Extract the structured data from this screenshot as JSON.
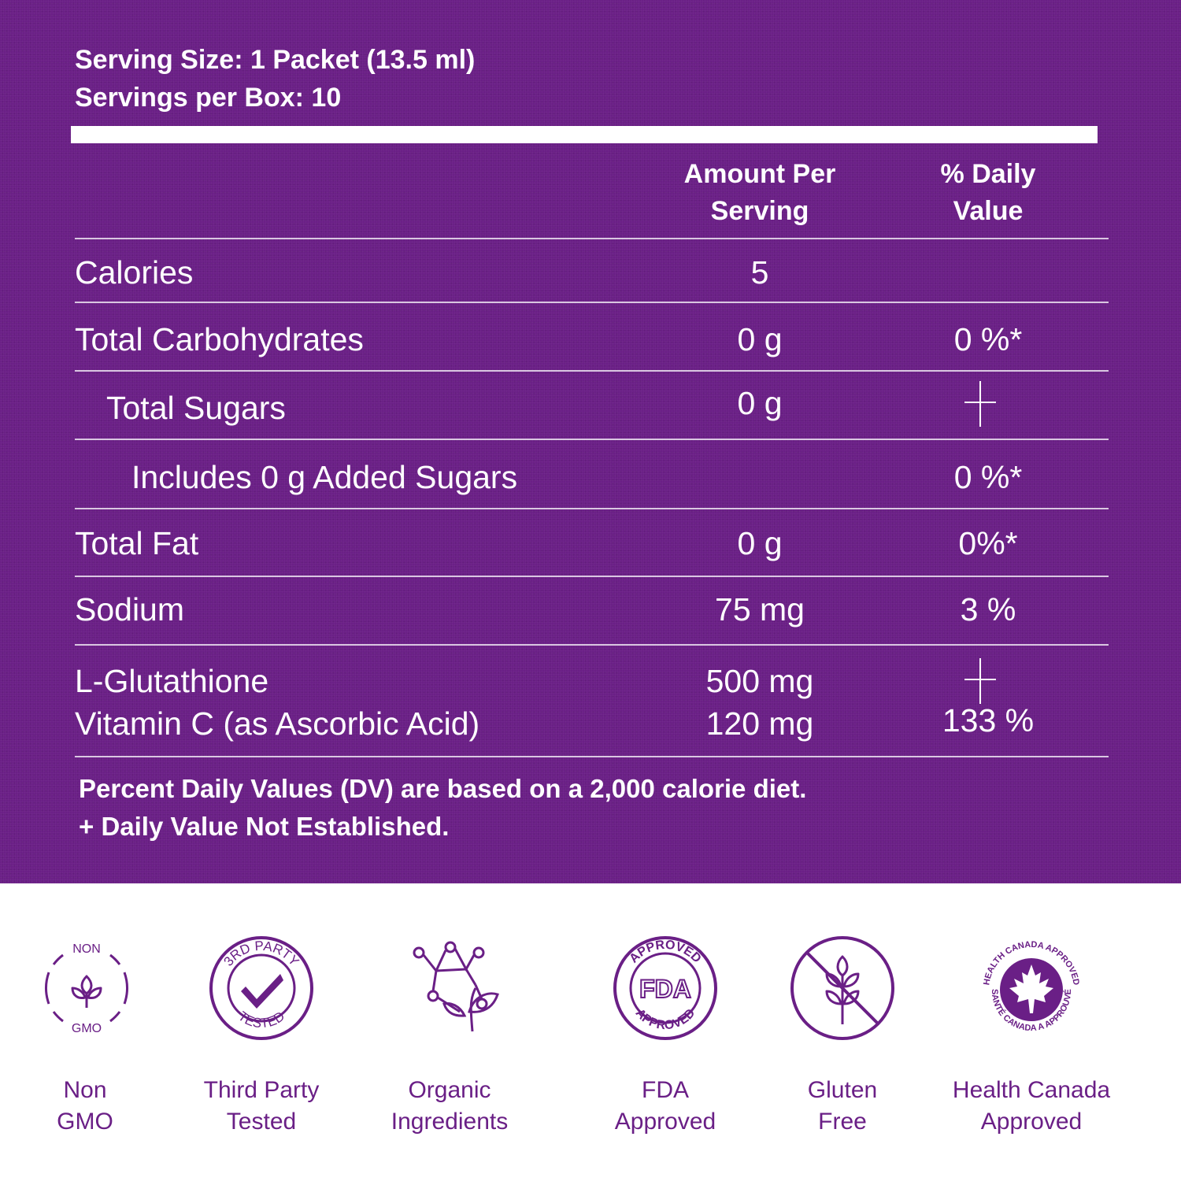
{
  "serving": {
    "size": "Serving Size: 1 Packet (13.5 ml)",
    "per_box": "Servings per Box: 10"
  },
  "headers": {
    "amount_line1": "Amount Per",
    "amount_line2": "Serving",
    "dv_line1": "% Daily",
    "dv_line2": "Value"
  },
  "rows": [
    {
      "name": "Calories",
      "amount": "5",
      "dv": ""
    },
    {
      "name": "Total Carbohydrates",
      "amount": "0 g",
      "dv": "0 %*"
    },
    {
      "name": "Total Sugars",
      "amount": "0 g",
      "dv": "+"
    },
    {
      "name": "Includes 0 g Added Sugars",
      "amount": "",
      "dv": "0 %*"
    },
    {
      "name": "Total Fat",
      "amount": "0 g",
      "dv": "0%*"
    },
    {
      "name": "Sodium",
      "amount": "75 mg",
      "dv": "3 %"
    },
    {
      "name": "L-Glutathione",
      "amount": "500 mg",
      "dv": "+"
    },
    {
      "name": "Vitamin C (as Ascorbic Acid)",
      "amount": "120 mg",
      "dv": "133 %"
    }
  ],
  "footnote": {
    "line1": "Percent Daily Values (DV) are based on a 2,000 calorie diet.",
    "line2": "+ Daily Value Not Established."
  },
  "badges": [
    {
      "icon": "non-gmo-icon",
      "ring_top": "NON",
      "ring_bottom": "GMO",
      "label_line1": "Non",
      "label_line2": "GMO"
    },
    {
      "icon": "third-party-tested-icon",
      "ring_top": "3RD PARTY",
      "ring_bottom": "TESTED",
      "label_line1": "Third Party",
      "label_line2": "Tested"
    },
    {
      "icon": "organic-ingredients-icon",
      "label_line1": "Organic",
      "label_line2": "Ingredients"
    },
    {
      "icon": "fda-approved-icon",
      "ring_top": "APPROVED",
      "center": "FDA",
      "ring_bottom": "APPROVED",
      "label_line1": "FDA",
      "label_line2": "Approved"
    },
    {
      "icon": "gluten-free-icon",
      "label_line1": "Gluten",
      "label_line2": "Free"
    },
    {
      "icon": "health-canada-icon",
      "ring_top": "HEALTH CANADA APPROVED",
      "ring_bottom": "SANTÉ CANADA A APPROUVÉ",
      "label_line1": "Health Canada",
      "label_line2": "Approved"
    }
  ],
  "colors": {
    "panel": "#6a1f86",
    "text_on_panel": "#ffffff",
    "badge": "#6a1f86"
  }
}
